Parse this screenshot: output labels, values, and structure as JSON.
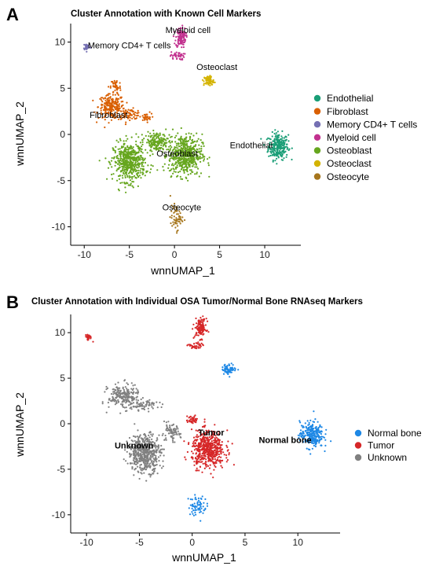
{
  "chart_data": [
    {
      "type": "scatter",
      "panel_letter": "A",
      "title": "Cluster Annotation with Known Cell Markers",
      "xlabel": "wnnUMAP_1",
      "ylabel": "wnnUMAP_2",
      "xlim": [
        -11.5,
        14
      ],
      "ylim": [
        -12,
        12
      ],
      "xticks": [
        -10,
        -5,
        0,
        5,
        10
      ],
      "yticks": [
        -10,
        -5,
        0,
        5,
        10
      ],
      "grid": false,
      "legend_position": "right",
      "series": [
        {
          "name": "Endothelial",
          "color": "#1a9e77",
          "blobs": [
            [
              11.5,
              -1.3,
              1.0,
              1.3,
              260
            ]
          ]
        },
        {
          "name": "Fibroblast",
          "color": "#d95f02",
          "blobs": [
            [
              -7.0,
              3.0,
              1.3,
              1.2,
              220
            ],
            [
              -5.0,
              2.2,
              1.3,
              0.5,
              80
            ],
            [
              -3.2,
              1.8,
              0.6,
              0.4,
              30
            ],
            [
              -6.5,
              5.2,
              0.5,
              0.8,
              40
            ]
          ]
        },
        {
          "name": "Memory CD4+ T cells",
          "color": "#7570b3",
          "blobs": [
            [
              -9.7,
              9.5,
              0.35,
              0.35,
              30
            ]
          ]
        },
        {
          "name": "Myeloid cell",
          "color": "#c2318f",
          "blobs": [
            [
              0.7,
              10.5,
              0.5,
              1.0,
              120
            ],
            [
              0.3,
              8.5,
              0.7,
              0.4,
              40
            ]
          ]
        },
        {
          "name": "Osteoblast",
          "color": "#66a61e",
          "blobs": [
            [
              -5.0,
              -3.0,
              1.6,
              1.9,
              520
            ],
            [
              1.2,
              -2.2,
              1.7,
              2.0,
              520
            ],
            [
              -2.0,
              -0.8,
              1.2,
              0.9,
              160
            ]
          ]
        },
        {
          "name": "Osteoclast",
          "color": "#d4b300",
          "blobs": [
            [
              3.8,
              5.8,
              0.5,
              0.5,
              70
            ]
          ]
        },
        {
          "name": "Osteocyte",
          "color": "#a6761d",
          "blobs": [
            [
              0.2,
              -9.0,
              0.6,
              1.2,
              60
            ]
          ]
        }
      ],
      "cluster_labels": [
        {
          "text": "Myeloid cell",
          "x": 1.5,
          "y": 11.0,
          "bold": false
        },
        {
          "text": "Memory CD4+ T cells",
          "x": -5.0,
          "y": 9.3,
          "bold": false
        },
        {
          "text": "Osteoclast",
          "x": 4.7,
          "y": 7.0,
          "bold": false
        },
        {
          "text": "Fibroblast",
          "x": -7.3,
          "y": 1.8,
          "bold": false
        },
        {
          "text": "Endothelial",
          "x": 8.5,
          "y": -1.5,
          "bold": false
        },
        {
          "text": "Osteoblast",
          "x": 0.3,
          "y": -2.4,
          "bold": false
        },
        {
          "text": "Osteocyte",
          "x": 0.8,
          "y": -8.2,
          "bold": false
        }
      ]
    },
    {
      "type": "scatter",
      "panel_letter": "B",
      "title": "Cluster Annotation with Individual OSA Tumor/Normal Bone RNAseq Markers",
      "xlabel": "wnnUMAP_1",
      "ylabel": "wnnUMAP_2",
      "xlim": [
        -11.5,
        14
      ],
      "ylim": [
        -12,
        12
      ],
      "xticks": [
        -10,
        -5,
        0,
        5,
        10
      ],
      "yticks": [
        -10,
        -5,
        0,
        5,
        10
      ],
      "grid": false,
      "legend_position": "right",
      "series": [
        {
          "name": "Normal bone",
          "color": "#1e88e5",
          "blobs": [
            [
              11.3,
              -1.2,
              1.0,
              1.3,
              260
            ],
            [
              3.5,
              6.0,
              0.6,
              0.5,
              70
            ],
            [
              0.5,
              -9.0,
              0.8,
              1.0,
              70
            ]
          ]
        },
        {
          "name": "Tumor",
          "color": "#d62728",
          "blobs": [
            [
              1.5,
              -2.8,
              1.4,
              1.8,
              520
            ],
            [
              0.8,
              10.5,
              0.5,
              1.0,
              120
            ],
            [
              0.3,
              8.5,
              0.6,
              0.4,
              40
            ],
            [
              -9.8,
              9.5,
              0.3,
              0.3,
              30
            ],
            [
              0.0,
              0.4,
              0.5,
              0.4,
              40
            ]
          ]
        },
        {
          "name": "Unknown",
          "color": "#808080",
          "blobs": [
            [
              -6.5,
              3.0,
              1.3,
              1.2,
              220
            ],
            [
              -4.5,
              2.0,
              1.2,
              0.5,
              70
            ],
            [
              -4.5,
              -3.2,
              1.4,
              1.9,
              500
            ],
            [
              -2.0,
              -1.0,
              0.8,
              0.8,
              80
            ]
          ]
        }
      ],
      "cluster_labels": [
        {
          "text": "Tumor",
          "x": 1.8,
          "y": -1.3,
          "bold": true
        },
        {
          "text": "Unknown",
          "x": -5.5,
          "y": -2.7,
          "bold": true
        },
        {
          "text": "Normal bone",
          "x": 8.8,
          "y": -2.1,
          "bold": true
        }
      ]
    }
  ]
}
